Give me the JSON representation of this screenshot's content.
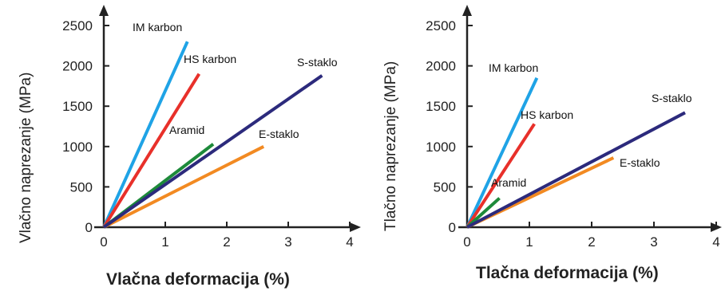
{
  "chart_data": [
    {
      "type": "line",
      "xlabel": "Vlačna deformacija (%)",
      "ylabel": "Vlačno naprezanje (MPa)",
      "xlim": [
        0,
        4
      ],
      "ylim": [
        0,
        2500
      ],
      "xticks": [
        "0",
        "1",
        "2",
        "3",
        "4"
      ],
      "yticks": [
        "0",
        "500",
        "1000",
        "1500",
        "2000",
        "2500"
      ],
      "grid": false,
      "series": [
        {
          "name": "IM karbon",
          "color": "#1fa3e6",
          "x": [
            0,
            1.36
          ],
          "y": [
            0,
            2300
          ]
        },
        {
          "name": "HS karbon",
          "color": "#e8302a",
          "x": [
            0,
            1.55
          ],
          "y": [
            0,
            1900
          ]
        },
        {
          "name": "Aramid",
          "color": "#1d8a3a",
          "x": [
            0,
            1.78
          ],
          "y": [
            0,
            1030
          ]
        },
        {
          "name": "E-staklo",
          "color": "#f28a22",
          "x": [
            0,
            2.6
          ],
          "y": [
            0,
            1000
          ]
        },
        {
          "name": "S-staklo",
          "color": "#2c2a7c",
          "x": [
            0,
            3.55
          ],
          "y": [
            0,
            1880
          ]
        }
      ]
    },
    {
      "type": "line",
      "xlabel": "Tlačna deformacija (%)",
      "ylabel": "Tlačno naprezanje (MPa)",
      "xlim": [
        0,
        4
      ],
      "ylim": [
        0,
        2500
      ],
      "xticks": [
        "0",
        "1",
        "2",
        "3",
        "4"
      ],
      "yticks": [
        "0",
        "500",
        "1000",
        "1500",
        "2000",
        "2500"
      ],
      "grid": false,
      "series": [
        {
          "name": "IM karbon",
          "color": "#1fa3e6",
          "x": [
            0,
            1.12
          ],
          "y": [
            0,
            1850
          ]
        },
        {
          "name": "HS karbon",
          "color": "#e8302a",
          "x": [
            0,
            1.08
          ],
          "y": [
            0,
            1280
          ]
        },
        {
          "name": "Aramid",
          "color": "#1d8a3a",
          "x": [
            0,
            0.52
          ],
          "y": [
            0,
            360
          ]
        },
        {
          "name": "E-staklo",
          "color": "#f28a22",
          "x": [
            0,
            2.35
          ],
          "y": [
            0,
            860
          ]
        },
        {
          "name": "S-staklo",
          "color": "#2c2a7c",
          "x": [
            0,
            3.5
          ],
          "y": [
            0,
            1420
          ]
        }
      ]
    }
  ]
}
